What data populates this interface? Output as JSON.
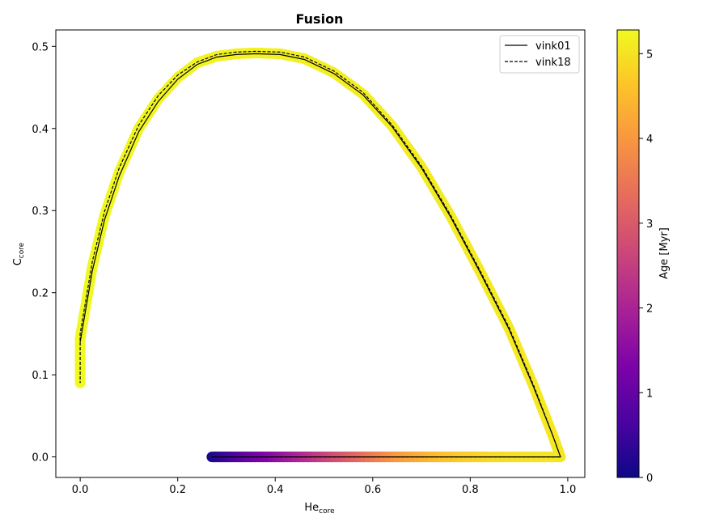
{
  "chart_data": {
    "type": "line",
    "title": "Fusion",
    "xlabel": {
      "main": "He",
      "sub": "core"
    },
    "ylabel": {
      "main": "C",
      "sub": "core"
    },
    "xlim": [
      -0.05,
      1.035
    ],
    "ylim": [
      -0.025,
      0.52
    ],
    "xticks": [
      0.0,
      0.2,
      0.4,
      0.6,
      0.8,
      1.0
    ],
    "xtick_labels": [
      "0.0",
      "0.2",
      "0.4",
      "0.6",
      "0.8",
      "1.0"
    ],
    "yticks": [
      0.0,
      0.1,
      0.2,
      0.3,
      0.4,
      0.5
    ],
    "ytick_labels": [
      "0.0",
      "0.1",
      "0.2",
      "0.3",
      "0.4",
      "0.5"
    ],
    "grid": false,
    "legend_position": "top-right",
    "series": [
      {
        "name": "vink01",
        "line_style": "solid",
        "color": "#000000",
        "x": [
          0.27,
          0.5,
          0.75,
          0.985,
          0.97,
          0.93,
          0.88,
          0.82,
          0.76,
          0.7,
          0.64,
          0.58,
          0.52,
          0.46,
          0.41,
          0.36,
          0.32,
          0.28,
          0.24,
          0.2,
          0.16,
          0.12,
          0.08,
          0.05,
          0.025,
          0.0
        ],
        "y": [
          0.0,
          0.0,
          0.0,
          0.0,
          0.025,
          0.085,
          0.155,
          0.225,
          0.292,
          0.352,
          0.402,
          0.441,
          0.467,
          0.484,
          0.49,
          0.491,
          0.49,
          0.487,
          0.478,
          0.46,
          0.433,
          0.396,
          0.342,
          0.289,
          0.227,
          0.14
        ]
      },
      {
        "name": "vink18",
        "line_style": "dashed",
        "color": "#000000",
        "x": [
          0.27,
          0.5,
          0.75,
          0.985,
          0.97,
          0.93,
          0.88,
          0.82,
          0.76,
          0.7,
          0.64,
          0.58,
          0.52,
          0.46,
          0.41,
          0.36,
          0.32,
          0.28,
          0.24,
          0.2,
          0.16,
          0.12,
          0.08,
          0.05,
          0.025,
          0.0,
          0.0
        ],
        "y": [
          0.0,
          0.0,
          0.0,
          0.0,
          0.025,
          0.087,
          0.157,
          0.227,
          0.294,
          0.354,
          0.404,
          0.444,
          0.47,
          0.487,
          0.493,
          0.494,
          0.493,
          0.49,
          0.481,
          0.465,
          0.44,
          0.404,
          0.352,
          0.299,
          0.238,
          0.15,
          0.09
        ]
      }
    ],
    "age_track": {
      "x": [
        0.27,
        0.35,
        0.45,
        0.55,
        0.65,
        0.75,
        0.85,
        0.92,
        0.985,
        0.97,
        0.93,
        0.88,
        0.82,
        0.76,
        0.7,
        0.64,
        0.58,
        0.52,
        0.46,
        0.41,
        0.36,
        0.32,
        0.28,
        0.24,
        0.2,
        0.16,
        0.12,
        0.08,
        0.05,
        0.025,
        0.0,
        0.0
      ],
      "y": [
        0.0,
        0.0,
        0.0,
        0.0,
        0.0,
        0.0,
        0.0,
        0.0,
        0.0,
        0.025,
        0.086,
        0.156,
        0.226,
        0.293,
        0.353,
        0.403,
        0.442,
        0.468,
        0.485,
        0.491,
        0.492,
        0.491,
        0.488,
        0.48,
        0.462,
        0.436,
        0.4,
        0.347,
        0.294,
        0.232,
        0.145,
        0.09
      ],
      "age": [
        0.1,
        1.0,
        2.0,
        3.0,
        4.0,
        4.6,
        4.9,
        5.0,
        5.05,
        5.07,
        5.08,
        5.09,
        5.1,
        5.11,
        5.12,
        5.13,
        5.14,
        5.15,
        5.16,
        5.17,
        5.18,
        5.19,
        5.2,
        5.21,
        5.22,
        5.23,
        5.24,
        5.25,
        5.26,
        5.27,
        5.28,
        5.29
      ]
    },
    "colorbar": {
      "label": "Age [Myr]",
      "colormap": "plasma",
      "range": [
        0,
        5.28
      ],
      "ticks": [
        0,
        1,
        2,
        3,
        4,
        5
      ],
      "tick_labels": [
        "0",
        "1",
        "2",
        "3",
        "4",
        "5"
      ]
    }
  }
}
